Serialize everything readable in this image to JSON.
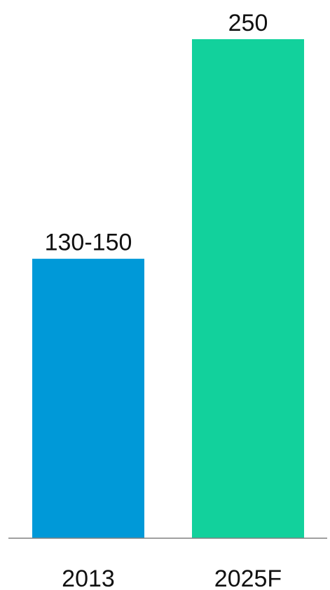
{
  "chart_data": {
    "type": "bar",
    "title": "",
    "xlabel": "",
    "ylabel": "",
    "categories": [
      "2013",
      "2025F"
    ],
    "values": [
      140,
      250
    ],
    "data_labels": [
      "130-150",
      "250"
    ],
    "ylim": [
      0,
      250
    ],
    "grid": false,
    "legend": "none",
    "colors": [
      "#0099D8",
      "#12D19C"
    ],
    "axis_color": "#808080"
  }
}
